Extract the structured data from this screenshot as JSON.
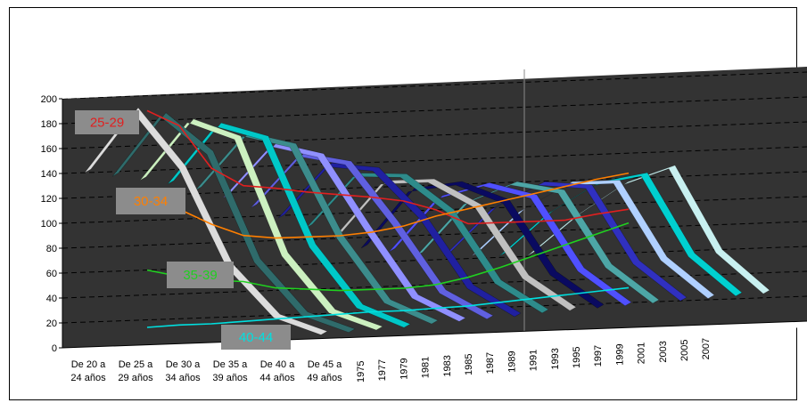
{
  "chart_data": {
    "type": "line",
    "title": "",
    "xlabel": "",
    "ylabel": "",
    "ylim": [
      0,
      200
    ],
    "yticks": [
      0,
      20,
      40,
      60,
      80,
      100,
      120,
      140,
      160,
      180,
      200
    ],
    "categories": [
      "De 20 a 24 años",
      "De 25 a 29 años",
      "De 30 a 34 años",
      "De 35 a 39 años",
      "De 40 a 44 años",
      "De 45 a 49 años"
    ],
    "category_lines": [
      [
        "De 20 a",
        "24 años"
      ],
      [
        "De 25 a",
        "29 años"
      ],
      [
        "De 30 a",
        "34 años"
      ],
      [
        "De 35 a",
        "39 años"
      ],
      [
        "De 40 a",
        "44 años"
      ],
      [
        "De 45 a",
        "49 años"
      ]
    ],
    "years": [
      "1975",
      "1977",
      "1979",
      "1981",
      "1983",
      "1985",
      "1987",
      "1989",
      "1991",
      "1993",
      "1995",
      "1997",
      "1999",
      "2001",
      "2003",
      "2005",
      "2007"
    ],
    "ribbon_series": [
      {
        "year": "1975",
        "values": [
          140,
          188,
          140,
          60,
          18,
          3
        ],
        "color": "#dcdcdc"
      },
      {
        "year": "1977",
        "values": [
          135,
          182,
          150,
          62,
          18,
          3
        ],
        "color": "#2f6b6b"
      },
      {
        "year": "1979",
        "values": [
          130,
          175,
          160,
          65,
          18,
          3
        ],
        "color": "#ccf0c0"
      },
      {
        "year": "1981",
        "values": [
          125,
          170,
          158,
          70,
          20,
          3
        ],
        "color": "#00c8c8"
      },
      {
        "year": "1983",
        "values": [
          118,
          160,
          150,
          75,
          22,
          4
        ],
        "color": "#3c8c8c"
      },
      {
        "year": "1985",
        "values": [
          110,
          150,
          140,
          80,
          24,
          4
        ],
        "color": "#9090ff"
      },
      {
        "year": "1987",
        "values": [
          100,
          140,
          132,
          82,
          26,
          4
        ],
        "color": "#6060e0"
      },
      {
        "year": "1989",
        "values": [
          90,
          130,
          125,
          85,
          28,
          4
        ],
        "color": "#2020a0"
      },
      {
        "year": "1991",
        "values": [
          80,
          120,
          118,
          88,
          30,
          5
        ],
        "color": "#2e8b8b"
      },
      {
        "year": "1993",
        "values": [
          70,
          112,
          112,
          90,
          32,
          5
        ],
        "color": "#c0c0c0"
      },
      {
        "year": "1995",
        "values": [
          60,
          104,
          108,
          92,
          33,
          5
        ],
        "color": "#0a0a60"
      },
      {
        "year": "1997",
        "values": [
          55,
          96,
          105,
          94,
          34,
          5
        ],
        "color": "#5050ff"
      },
      {
        "year": "1999",
        "values": [
          50,
          90,
          104,
          96,
          35,
          5
        ],
        "color": "#4da6a6"
      },
      {
        "year": "2001",
        "values": [
          48,
          84,
          102,
          98,
          36,
          5
        ],
        "color": "#3030c0"
      },
      {
        "year": "2003",
        "values": [
          46,
          80,
          100,
          100,
          37,
          5
        ],
        "color": "#b0d0ff"
      },
      {
        "year": "2005",
        "values": [
          44,
          76,
          98,
          104,
          38,
          5
        ],
        "color": "#00d0d0"
      },
      {
        "year": "2007",
        "values": [
          42,
          72,
          96,
          108,
          39,
          5
        ],
        "color": "#c8f0f0"
      }
    ],
    "trend_series": [
      {
        "name": "25-29",
        "color": "#e02020",
        "values": [
          188,
          175,
          140,
          125,
          122,
          118,
          115,
          112,
          108,
          100,
          88,
          88,
          88,
          88,
          92,
          95
        ]
      },
      {
        "name": "30-34",
        "color": "#ff7f00",
        "values": [
          118,
          108,
          95,
          85,
          82,
          82,
          82,
          84,
          88,
          95,
          100,
          105,
          110,
          115,
          120,
          124
        ]
      },
      {
        "name": "35-39",
        "color": "#20d020",
        "values": [
          60,
          54,
          50,
          48,
          42,
          40,
          38,
          38,
          38,
          40,
          45,
          52,
          60,
          68,
          76,
          84
        ]
      },
      {
        "name": "40-44",
        "color": "#00e0e0",
        "values": [
          14,
          15,
          15,
          16,
          17,
          18,
          19,
          20,
          20,
          21,
          22,
          24,
          26,
          28,
          30,
          32
        ]
      }
    ],
    "labels": [
      {
        "text": "25-29",
        "color": "#e02020"
      },
      {
        "text": "30-34",
        "color": "#ff7f00"
      },
      {
        "text": "35-39",
        "color": "#20d020"
      },
      {
        "text": "40-44",
        "color": "#00e0e0"
      }
    ],
    "background_color": "#333333",
    "grid": true
  }
}
